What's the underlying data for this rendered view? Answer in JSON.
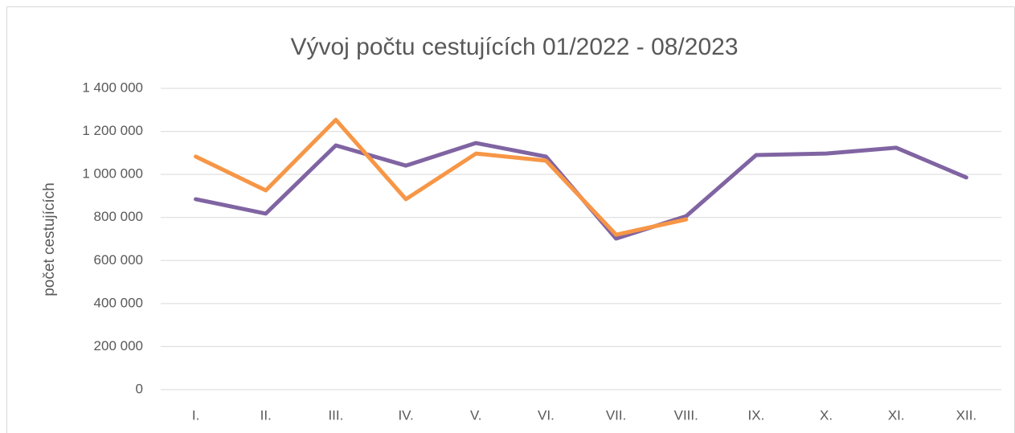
{
  "chart_data": {
    "type": "line",
    "title": "Vývoj počtu cestujících 01/2022 - 08/2023",
    "ylabel": "počet cestujících",
    "categories": [
      "I.",
      "II.",
      "III.",
      "IV.",
      "V.",
      "VI.",
      "VII.",
      "VIII.",
      "IX.",
      "X.",
      "XI.",
      "XII."
    ],
    "series": [
      {
        "color": "#8064a2",
        "values": [
          885000,
          818000,
          1135000,
          1041000,
          1146000,
          1083000,
          702000,
          806000,
          1090000,
          1097000,
          1124000,
          986000
        ]
      },
      {
        "color": "#f79646",
        "values": [
          1083000,
          926000,
          1254000,
          885000,
          1097000,
          1064000,
          720000,
          791000,
          null,
          null,
          null,
          null
        ]
      }
    ],
    "ylim": [
      0,
      1400000
    ],
    "yticks": [
      0,
      {
        "value": 200000,
        "label": "200 000"
      },
      {
        "value": 400000,
        "label": "400 000"
      },
      {
        "value": 600000,
        "label": "600 000"
      },
      {
        "value": 800000,
        "label": "800 000"
      },
      {
        "value": 1000000,
        "label": "1 000 000"
      },
      {
        "value": 1200000,
        "label": "1 200 000"
      },
      {
        "value": 1400000,
        "label": "1 400 000"
      }
    ],
    "grid": true
  }
}
